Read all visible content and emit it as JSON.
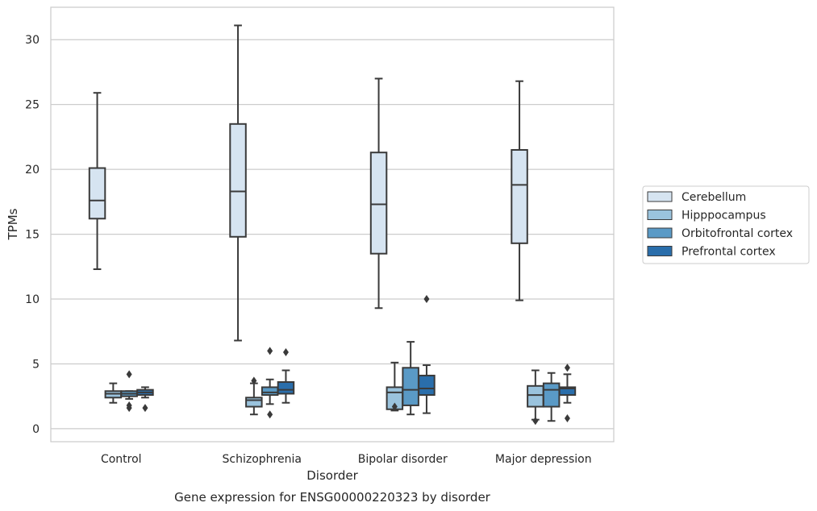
{
  "chart_data": {
    "type": "box",
    "title": "Gene expression for ENSG00000220323 by disorder",
    "xlabel": "Disorder",
    "ylabel": "TPMs",
    "ylim": [
      -1,
      32.5
    ],
    "yticks": [
      0,
      5,
      10,
      15,
      20,
      25,
      30
    ],
    "grid": true,
    "legend_position": "right",
    "categories": [
      "Control",
      "Schizophrenia",
      "Bipolar disorder",
      "Major depression"
    ],
    "series": [
      {
        "name": "Cerebellum",
        "color": "#d6e4f1",
        "boxes": [
          {
            "min": 12.3,
            "q1": 16.2,
            "median": 17.6,
            "q3": 20.1,
            "max": 25.9,
            "outliers": []
          },
          {
            "min": 6.8,
            "q1": 14.8,
            "median": 18.3,
            "q3": 23.5,
            "max": 31.1,
            "outliers": []
          },
          {
            "min": 9.3,
            "q1": 13.5,
            "median": 17.3,
            "q3": 21.3,
            "max": 27.0,
            "outliers": []
          },
          {
            "min": 9.9,
            "q1": 14.3,
            "median": 18.8,
            "q3": 21.5,
            "max": 26.8,
            "outliers": []
          }
        ]
      },
      {
        "name": "Hipppocampus",
        "color": "#9ac3dd",
        "boxes": [
          {
            "min": 2.0,
            "q1": 2.4,
            "median": 2.7,
            "q3": 2.9,
            "max": 3.5,
            "outliers": []
          },
          {
            "min": 1.1,
            "q1": 1.7,
            "median": 2.2,
            "q3": 2.4,
            "max": 3.5,
            "outliers": [
              3.7
            ]
          },
          {
            "min": 1.4,
            "q1": 1.5,
            "median": 2.8,
            "q3": 3.2,
            "max": 5.1,
            "outliers": [
              1.7
            ]
          },
          {
            "min": 0.7,
            "q1": 1.7,
            "median": 2.6,
            "q3": 3.3,
            "max": 4.5,
            "outliers": [
              0.6
            ]
          }
        ]
      },
      {
        "name": "Orbitofrontal cortex",
        "color": "#5a9ac6",
        "boxes": [
          {
            "min": 2.3,
            "q1": 2.5,
            "median": 2.7,
            "q3": 2.9,
            "max": 2.9,
            "outliers": [
              4.2,
              1.8,
              1.6
            ]
          },
          {
            "min": 1.9,
            "q1": 2.6,
            "median": 2.8,
            "q3": 3.2,
            "max": 3.8,
            "outliers": [
              6.0,
              1.1
            ]
          },
          {
            "min": 1.1,
            "q1": 1.8,
            "median": 3.0,
            "q3": 4.7,
            "max": 6.7,
            "outliers": []
          },
          {
            "min": 0.6,
            "q1": 1.7,
            "median": 3.0,
            "q3": 3.5,
            "max": 4.3,
            "outliers": []
          }
        ]
      },
      {
        "name": "Prefrontal cortex",
        "color": "#2a6eab",
        "boxes": [
          {
            "min": 2.4,
            "q1": 2.6,
            "median": 2.8,
            "q3": 3.0,
            "max": 3.2,
            "outliers": [
              1.6
            ]
          },
          {
            "min": 2.0,
            "q1": 2.7,
            "median": 3.0,
            "q3": 3.6,
            "max": 4.5,
            "outliers": [
              5.9
            ]
          },
          {
            "min": 1.2,
            "q1": 2.6,
            "median": 3.1,
            "q3": 4.1,
            "max": 4.9,
            "outliers": [
              10.0
            ]
          },
          {
            "min": 2.0,
            "q1": 2.6,
            "median": 3.1,
            "q3": 3.2,
            "max": 4.2,
            "outliers": [
              4.7,
              0.8
            ]
          }
        ]
      }
    ]
  }
}
